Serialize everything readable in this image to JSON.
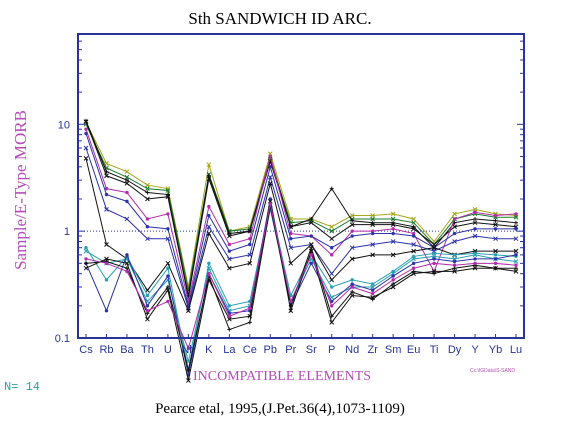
{
  "chart_data": {
    "type": "line",
    "title": "Sth SANDWICH ID ARC.",
    "ylabel": "Sample/E-Type MORB",
    "xlabel": "INCOMPATIBLE ELEMENTS",
    "yscale": "log",
    "ylim": [
      0.1,
      70
    ],
    "yticks": [
      0.1,
      1,
      10
    ],
    "ytick_labels": [
      "0.1",
      "1",
      "10"
    ],
    "reference_line": 1,
    "categories": [
      "Cs",
      "Rb",
      "Ba",
      "Th",
      "U",
      "Nb",
      "K",
      "La",
      "Ce",
      "Pb",
      "Pr",
      "Sr",
      "P",
      "Nd",
      "Zr",
      "Sm",
      "Eu",
      "Ti",
      "Dy",
      "Y",
      "Yb",
      "Lu"
    ],
    "n_label": "N= 14",
    "legend_text": "Cc:\\IGData\\S-SAND",
    "citation": "Pearce etal, 1995,(J.Pet.36(4),1073-1109)",
    "series": [
      {
        "color": "#a6a61a",
        "marker": "x",
        "values": [
          10.5,
          4.3,
          3.6,
          2.7,
          2.5,
          0.3,
          4.2,
          1.0,
          1.1,
          5.3,
          1.3,
          1.3,
          1.1,
          1.4,
          1.4,
          1.45,
          1.3,
          0.8,
          1.45,
          1.6,
          1.45,
          1.4
        ]
      },
      {
        "color": "#1a7a2e",
        "marker": "x",
        "values": [
          10.0,
          3.9,
          3.2,
          2.5,
          2.4,
          0.28,
          3.4,
          1.0,
          1.05,
          4.6,
          1.2,
          1.25,
          1.0,
          1.3,
          1.3,
          1.3,
          1.2,
          0.75,
          1.3,
          1.45,
          1.35,
          1.35
        ]
      },
      {
        "color": "#111111",
        "marker": "+",
        "values": [
          10.8,
          3.6,
          3.0,
          2.3,
          2.2,
          0.25,
          3.3,
          0.95,
          1.0,
          4.9,
          1.1,
          1.3,
          2.5,
          1.25,
          1.2,
          1.2,
          1.1,
          0.7,
          1.2,
          1.3,
          1.25,
          1.2
        ]
      },
      {
        "color": "#111111",
        "marker": "x",
        "values": [
          10.6,
          3.3,
          2.8,
          2.0,
          2.1,
          0.24,
          3.1,
          0.9,
          1.0,
          4.5,
          1.1,
          1.2,
          0.85,
          1.15,
          1.15,
          1.15,
          1.05,
          0.75,
          1.1,
          1.2,
          1.15,
          1.1
        ]
      },
      {
        "color": "#b32dab",
        "marker": "*",
        "values": [
          9.0,
          2.5,
          2.3,
          1.3,
          1.45,
          0.22,
          1.7,
          0.75,
          0.85,
          5.0,
          0.95,
          0.9,
          0.6,
          1.0,
          1.0,
          1.05,
          0.95,
          0.42,
          1.3,
          1.5,
          1.4,
          1.45
        ]
      },
      {
        "color": "#2b33a8",
        "marker": "*",
        "values": [
          8.2,
          2.2,
          1.9,
          1.1,
          1.05,
          0.2,
          1.4,
          0.65,
          0.75,
          4.0,
          0.85,
          0.9,
          0.7,
          0.9,
          0.95,
          0.95,
          0.9,
          0.7,
          0.95,
          1.05,
          1.05,
          1.05
        ]
      },
      {
        "color": "#2b33a8",
        "marker": "x",
        "values": [
          6.0,
          1.6,
          1.3,
          0.85,
          0.85,
          0.19,
          1.1,
          0.55,
          0.6,
          3.2,
          0.7,
          0.75,
          0.4,
          0.7,
          0.75,
          0.8,
          0.75,
          0.65,
          0.8,
          0.9,
          0.85,
          0.85
        ]
      },
      {
        "color": "#111111",
        "marker": "x",
        "values": [
          4.8,
          0.75,
          0.55,
          0.28,
          0.5,
          0.18,
          0.95,
          0.45,
          0.5,
          2.8,
          0.5,
          0.75,
          0.35,
          0.55,
          0.6,
          0.6,
          0.65,
          0.7,
          0.6,
          0.65,
          0.65,
          0.65
        ]
      },
      {
        "color": "#2aa0b0",
        "marker": "*",
        "values": [
          0.7,
          0.35,
          0.58,
          0.25,
          0.45,
          0.05,
          0.5,
          0.2,
          0.22,
          1.8,
          0.25,
          0.6,
          0.3,
          0.35,
          0.32,
          0.42,
          0.58,
          0.62,
          0.6,
          0.62,
          0.6,
          0.58
        ]
      },
      {
        "color": "#2aa0b0",
        "marker": "x",
        "values": [
          0.65,
          0.5,
          0.55,
          0.22,
          0.35,
          0.06,
          0.45,
          0.18,
          0.2,
          1.6,
          0.22,
          0.55,
          0.24,
          0.3,
          0.3,
          0.4,
          0.55,
          0.58,
          0.55,
          0.6,
          0.55,
          0.52
        ]
      },
      {
        "color": "#2b33a8",
        "marker": "*",
        "values": [
          0.5,
          0.18,
          0.6,
          0.2,
          0.38,
          0.045,
          0.4,
          0.17,
          0.18,
          2.0,
          0.2,
          0.5,
          0.22,
          0.32,
          0.28,
          0.38,
          0.5,
          0.55,
          0.52,
          0.55,
          0.55,
          0.6
        ]
      },
      {
        "color": "#111111",
        "marker": "x",
        "values": [
          0.45,
          0.55,
          0.5,
          0.15,
          0.28,
          0.04,
          0.35,
          0.15,
          0.16,
          1.9,
          0.18,
          0.65,
          0.14,
          0.25,
          0.24,
          0.3,
          0.4,
          0.42,
          0.42,
          0.45,
          0.45,
          0.42
        ]
      },
      {
        "color": "#111111",
        "marker": "+",
        "values": [
          0.5,
          0.52,
          0.45,
          0.17,
          0.3,
          0.05,
          0.38,
          0.12,
          0.14,
          1.7,
          0.2,
          0.7,
          0.16,
          0.27,
          0.23,
          0.32,
          0.42,
          0.4,
          0.45,
          0.48,
          0.45,
          0.45
        ]
      },
      {
        "color": "#b32dab",
        "marker": "*",
        "values": [
          0.55,
          0.5,
          0.42,
          0.18,
          0.22,
          0.08,
          0.4,
          0.16,
          0.19,
          1.8,
          0.22,
          0.6,
          0.2,
          0.3,
          0.26,
          0.35,
          0.45,
          0.5,
          0.48,
          0.5,
          0.5,
          0.48
        ]
      }
    ]
  }
}
